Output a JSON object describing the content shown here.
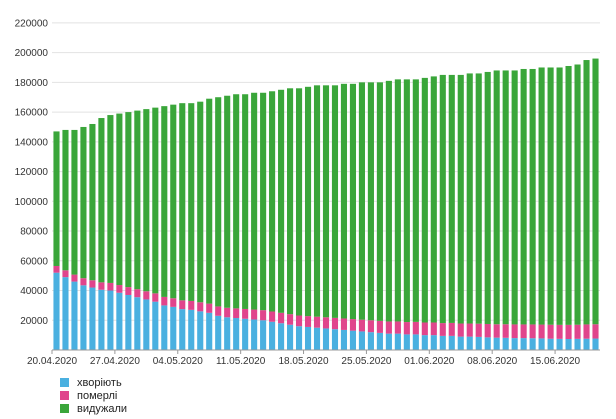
{
  "chart_data": {
    "type": "bar",
    "stacked": true,
    "ylim": [
      0,
      230000
    ],
    "yticks": [
      20000,
      40000,
      60000,
      80000,
      100000,
      120000,
      140000,
      160000,
      180000,
      200000,
      220000
    ],
    "ytick_labels": [
      "20000",
      "40000",
      "60000",
      "80000",
      "100000",
      "120000",
      "140000",
      "160000",
      "180000",
      "200000",
      "220000"
    ],
    "grid": true,
    "legend_position": "bottom-left",
    "xtick_labels": [
      "20.04.2020",
      "27.04.2020",
      "04.05.2020",
      "11.05.2020",
      "18.05.2020",
      "25.05.2020",
      "01.06.2020",
      "08.06.2020",
      "15.06.2020"
    ],
    "categories": [
      "20.04.2020",
      "21.04.2020",
      "22.04.2020",
      "23.04.2020",
      "24.04.2020",
      "25.04.2020",
      "26.04.2020",
      "27.04.2020",
      "28.04.2020",
      "29.04.2020",
      "30.04.2020",
      "01.05.2020",
      "02.05.2020",
      "03.05.2020",
      "04.05.2020",
      "05.05.2020",
      "06.05.2020",
      "07.05.2020",
      "08.05.2020",
      "09.05.2020",
      "10.05.2020",
      "11.05.2020",
      "12.05.2020",
      "13.05.2020",
      "14.05.2020",
      "15.05.2020",
      "16.05.2020",
      "17.05.2020",
      "18.05.2020",
      "19.05.2020",
      "20.05.2020",
      "21.05.2020",
      "22.05.2020",
      "23.05.2020",
      "24.05.2020",
      "25.05.2020",
      "26.05.2020",
      "27.05.2020",
      "28.05.2020",
      "29.05.2020",
      "30.05.2020",
      "31.05.2020",
      "01.06.2020",
      "02.06.2020",
      "03.06.2020",
      "04.06.2020",
      "05.06.2020",
      "06.06.2020",
      "07.06.2020",
      "08.06.2020",
      "09.06.2020",
      "10.06.2020",
      "11.06.2020",
      "12.06.2020",
      "13.06.2020",
      "14.06.2020",
      "15.06.2020",
      "16.06.2020",
      "17.06.2020",
      "18.06.2020",
      "19.06.2020"
    ],
    "series": [
      {
        "name": "хворіють",
        "color": "#4ab0e0",
        "values": [
          52000,
          49000,
          46000,
          43500,
          42000,
          40500,
          40000,
          38500,
          37000,
          35500,
          34000,
          32500,
          30000,
          29000,
          27500,
          27000,
          26000,
          25000,
          23000,
          22000,
          21500,
          21000,
          20500,
          20000,
          19000,
          18000,
          17000,
          16000,
          15500,
          15000,
          14500,
          14000,
          13500,
          13000,
          12500,
          12000,
          11500,
          11000,
          11000,
          10500,
          10500,
          10000,
          10000,
          9500,
          9500,
          9000,
          9000,
          8800,
          8500,
          8300,
          8200,
          8000,
          8000,
          7900,
          7800,
          7600,
          7500,
          7400,
          7500,
          7600,
          7700
        ]
      },
      {
        "name": "померлі",
        "color": "#e0458c",
        "values": [
          4500,
          4600,
          4700,
          4800,
          4900,
          5000,
          5100,
          5200,
          5300,
          5400,
          5500,
          5600,
          5700,
          5800,
          5900,
          6000,
          6100,
          6200,
          6300,
          6400,
          6500,
          6600,
          6700,
          6800,
          6900,
          7000,
          7100,
          7200,
          7300,
          7400,
          7500,
          7600,
          7700,
          7800,
          7900,
          8000,
          8100,
          8200,
          8200,
          8300,
          8400,
          8500,
          8500,
          8600,
          8700,
          8800,
          8800,
          8900,
          9000,
          9000,
          9100,
          9200,
          9200,
          9300,
          9300,
          9400,
          9400,
          9500,
          9500,
          9600,
          9600
        ]
      },
      {
        "name": "видужали",
        "color": "#3aa63a",
        "values": [
          90500,
          94400,
          97300,
          101700,
          105100,
          110500,
          112900,
          115300,
          117700,
          120100,
          122500,
          124900,
          128300,
          130200,
          132600,
          133000,
          134900,
          137800,
          140700,
          142600,
          144000,
          144400,
          145800,
          146200,
          148100,
          150000,
          151900,
          152800,
          154200,
          155600,
          156000,
          156400,
          157800,
          158200,
          159600,
          160000,
          160400,
          161800,
          162800,
          163200,
          163100,
          164500,
          165500,
          166900,
          166800,
          167200,
          168200,
          168300,
          169500,
          170700,
          170700,
          170800,
          171800,
          171800,
          172900,
          173000,
          173100,
          174100,
          175000,
          177800,
          178700
        ]
      }
    ]
  }
}
